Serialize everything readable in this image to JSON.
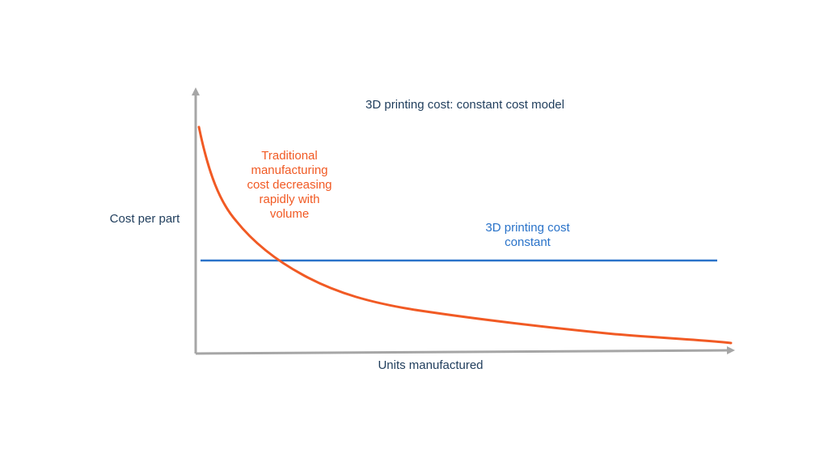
{
  "chart_data": {
    "type": "line",
    "title": "3D printing cost: constant cost model",
    "xlabel": "Units manufactured",
    "ylabel": "Cost per part",
    "grid": false,
    "legend": "none",
    "series": [
      {
        "annotation": "Traditional\nmanufacturing\ncost decreasing\nrapidly with\nvolume",
        "color": "#f15a24",
        "shape": "decreasing"
      },
      {
        "annotation": "3D printing cost\nconstant",
        "color": "#2a73c9",
        "shape": "constant"
      }
    ]
  }
}
